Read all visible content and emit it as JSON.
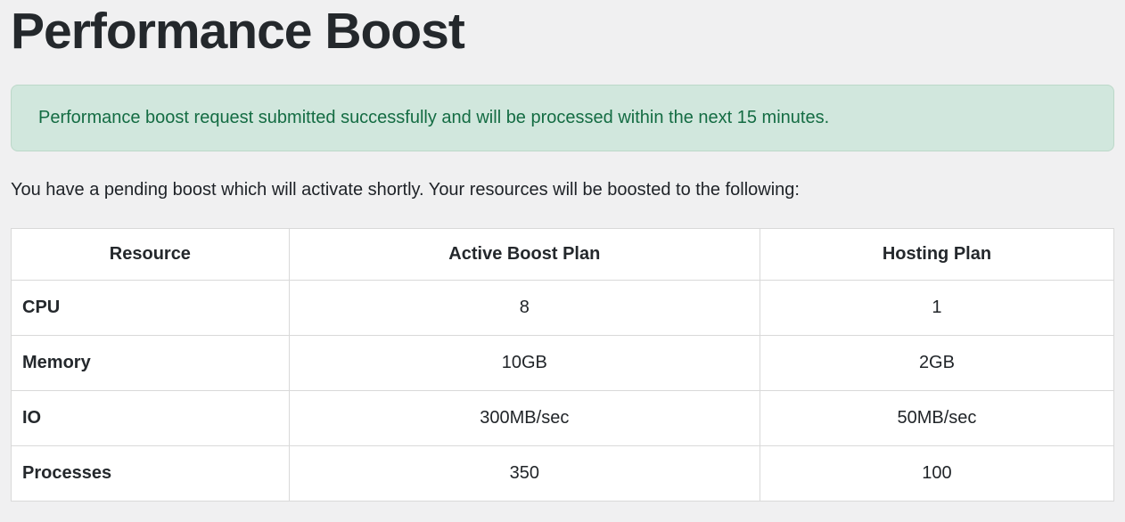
{
  "title": "Performance Boost",
  "alert": {
    "message": "Performance boost request submitted successfully and will be processed within the next 15 minutes."
  },
  "intro": "You have a pending boost which will activate shortly. Your resources will be boosted to the following:",
  "table": {
    "columns": [
      "Resource",
      "Active Boost Plan",
      "Hosting Plan"
    ],
    "rows": [
      {
        "resource": "CPU",
        "boost": "8",
        "hosting": "1"
      },
      {
        "resource": "Memory",
        "boost": "10GB",
        "hosting": "2GB"
      },
      {
        "resource": "IO",
        "boost": "300MB/sec",
        "hosting": "50MB/sec"
      },
      {
        "resource": "Processes",
        "boost": "350",
        "hosting": "100"
      }
    ]
  },
  "colors": {
    "page_bg": "#f0f0f1",
    "heading_text": "#24282c",
    "alert_bg": "#d1e7dd",
    "alert_border": "#bcd8c9",
    "alert_text": "#146c43",
    "body_text": "#212529",
    "table_bg": "#ffffff",
    "table_border": "#d9d9d9"
  }
}
